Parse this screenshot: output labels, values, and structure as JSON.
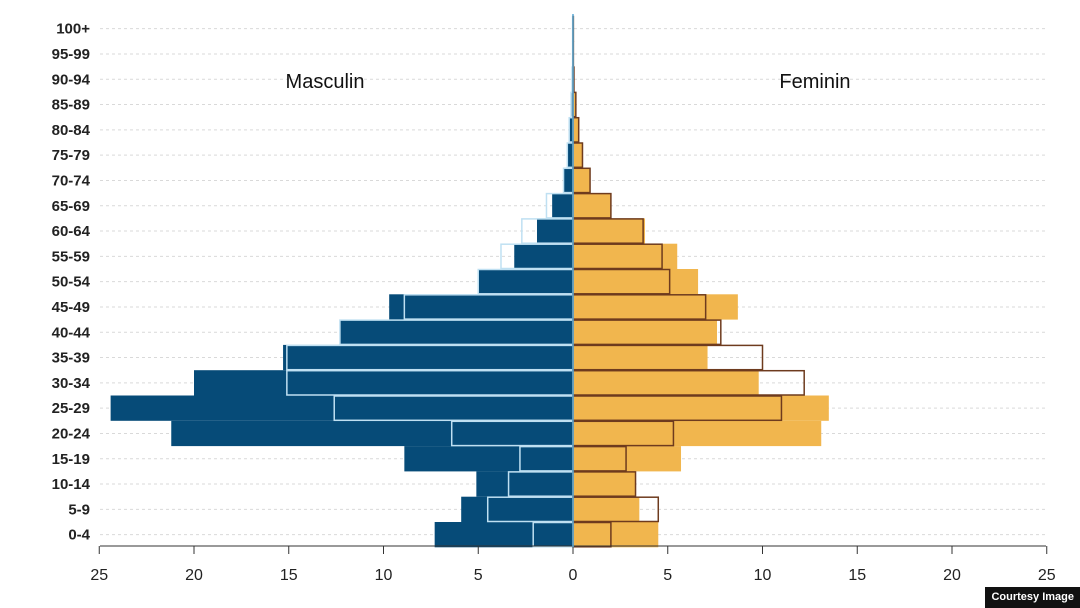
{
  "chart_data": {
    "type": "bar",
    "orientation": "horizontal-population-pyramid",
    "categories": [
      "0-4",
      "5-9",
      "10-14",
      "15-19",
      "20-24",
      "25-29",
      "30-34",
      "35-39",
      "40-44",
      "45-49",
      "50-54",
      "55-59",
      "60-64",
      "65-69",
      "70-74",
      "75-79",
      "80-84",
      "85-89",
      "90-94",
      "95-99",
      "100+"
    ],
    "side_labels": {
      "left": "Masculin",
      "right": "Feminin"
    },
    "series": [
      {
        "name": "Masculin",
        "values": [
          7.3,
          5.9,
          5.1,
          8.9,
          21.2,
          24.4,
          20.0,
          15.3,
          12.3,
          9.7,
          5.0,
          3.1,
          1.9,
          1.1,
          0.5,
          0.3,
          0.2,
          0.1,
          0.05,
          0.02,
          0.02
        ],
        "inner_values": [
          2.1,
          4.5,
          3.4,
          2.8,
          6.4,
          12.6,
          15.1,
          15.1,
          12.3,
          8.9,
          5.0,
          3.8,
          2.7,
          1.4,
          0.5,
          0.3,
          0.2,
          0.1,
          0.05,
          0.02,
          0.02
        ]
      },
      {
        "name": "Feminin",
        "values": [
          4.5,
          3.5,
          3.3,
          5.7,
          13.1,
          13.5,
          9.8,
          7.1,
          7.6,
          8.7,
          6.6,
          5.5,
          3.8,
          2.0,
          0.9,
          0.5,
          0.3,
          0.15,
          0.05,
          0.02,
          0.02
        ],
        "inner_values": [
          2.0,
          4.5,
          3.3,
          2.8,
          5.3,
          11.0,
          12.2,
          10.0,
          7.8,
          7.0,
          5.1,
          4.7,
          3.7,
          2.0,
          0.9,
          0.5,
          0.3,
          0.15,
          0.05,
          0.02,
          0.02
        ]
      }
    ],
    "x_ticks": [
      "25",
      "20",
      "15",
      "10",
      "5",
      "0",
      "5",
      "10",
      "15",
      "20",
      "25"
    ],
    "xlim": [
      -25,
      25
    ],
    "grid": "dashed-horizontal",
    "colors": {
      "male": "#064b78",
      "female": "#f1b64e",
      "male_outline": "#bfe0f2",
      "female_outline": "#6e3b1e"
    }
  },
  "credit": "Courtesy Image"
}
